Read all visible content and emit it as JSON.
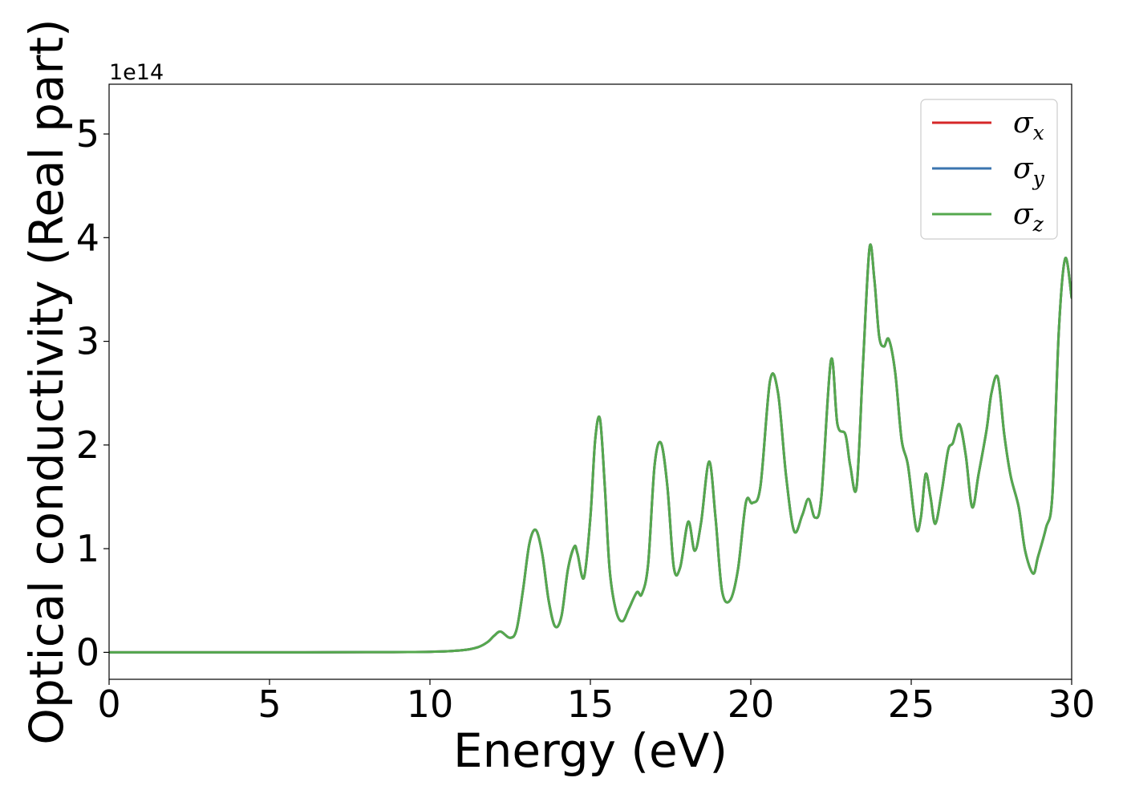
{
  "chart_data": {
    "type": "line",
    "title": "",
    "xlabel": "Energy (eV)",
    "ylabel": "Optical conductivity (Real part)",
    "y_offset_label": "1e14",
    "xlim": [
      0,
      30
    ],
    "ylim": [
      -0.26,
      5.48
    ],
    "y_scale_factor": 100000000000000.0,
    "xticks": [
      0,
      5,
      10,
      15,
      20,
      25,
      30
    ],
    "yticks": [
      0,
      1,
      2,
      3,
      4,
      5
    ],
    "grid": false,
    "legend_position": "top-right",
    "colors": {
      "x": "#d62728",
      "y": "#3b75af",
      "z": "#55a84e"
    },
    "x": [
      0,
      2,
      4,
      6,
      8,
      10,
      11,
      11.5,
      11.8,
      12.0,
      12.2,
      12.5,
      12.7,
      12.9,
      13.1,
      13.3,
      13.5,
      13.7,
      13.9,
      14.1,
      14.3,
      14.5,
      14.6,
      14.8,
      15.0,
      15.15,
      15.3,
      15.45,
      15.6,
      15.8,
      16.0,
      16.2,
      16.45,
      16.6,
      16.8,
      17.0,
      17.2,
      17.4,
      17.6,
      17.8,
      18.05,
      18.25,
      18.45,
      18.7,
      18.9,
      19.1,
      19.35,
      19.6,
      19.85,
      20.05,
      20.3,
      20.6,
      20.85,
      21.1,
      21.35,
      21.6,
      21.8,
      22.0,
      22.2,
      22.5,
      22.7,
      22.95,
      23.1,
      23.3,
      23.5,
      23.7,
      23.85,
      24.0,
      24.15,
      24.3,
      24.5,
      24.7,
      24.9,
      25.15,
      25.3,
      25.45,
      25.6,
      25.75,
      25.95,
      26.15,
      26.3,
      26.5,
      26.7,
      26.9,
      27.1,
      27.35,
      27.5,
      27.7,
      27.9,
      28.1,
      28.35,
      28.55,
      28.8,
      28.95,
      29.2,
      29.4,
      29.6,
      29.8,
      30
    ],
    "series": [
      {
        "name": "σx",
        "symbol": "σ",
        "subscript": "x",
        "color_key": "x",
        "values": [
          0,
          0,
          0,
          0,
          0.002,
          0.005,
          0.02,
          0.05,
          0.1,
          0.16,
          0.2,
          0.14,
          0.22,
          0.6,
          1.05,
          1.18,
          0.95,
          0.5,
          0.25,
          0.35,
          0.8,
          1.02,
          0.95,
          0.72,
          1.3,
          2.05,
          2.25,
          1.6,
          0.8,
          0.4,
          0.3,
          0.42,
          0.58,
          0.56,
          0.85,
          1.8,
          2.02,
          1.6,
          0.82,
          0.82,
          1.26,
          0.98,
          1.25,
          1.84,
          1.3,
          0.6,
          0.5,
          0.8,
          1.45,
          1.44,
          1.6,
          2.62,
          2.5,
          1.7,
          1.17,
          1.32,
          1.48,
          1.3,
          1.5,
          2.82,
          2.2,
          2.1,
          1.8,
          1.6,
          2.8,
          3.9,
          3.6,
          3.05,
          2.95,
          3.02,
          2.7,
          2.05,
          1.8,
          1.2,
          1.3,
          1.72,
          1.5,
          1.24,
          1.55,
          1.95,
          2.02,
          2.2,
          1.9,
          1.4,
          1.72,
          2.15,
          2.5,
          2.65,
          2.1,
          1.7,
          1.4,
          0.98,
          0.76,
          0.92,
          1.2,
          1.52,
          3.1,
          3.8,
          3.42
        ]
      },
      {
        "name": "σy",
        "symbol": "σ",
        "subscript": "y",
        "color_key": "y",
        "values": [
          0,
          0,
          0,
          0,
          0.002,
          0.005,
          0.02,
          0.05,
          0.1,
          0.16,
          0.2,
          0.14,
          0.22,
          0.6,
          1.05,
          1.18,
          0.95,
          0.5,
          0.25,
          0.35,
          0.8,
          1.02,
          0.95,
          0.72,
          1.3,
          2.05,
          2.25,
          1.6,
          0.8,
          0.4,
          0.3,
          0.42,
          0.58,
          0.56,
          0.85,
          1.8,
          2.02,
          1.6,
          0.82,
          0.82,
          1.26,
          0.98,
          1.25,
          1.84,
          1.3,
          0.6,
          0.5,
          0.8,
          1.45,
          1.44,
          1.6,
          2.62,
          2.5,
          1.7,
          1.17,
          1.32,
          1.48,
          1.3,
          1.5,
          2.82,
          2.2,
          2.1,
          1.8,
          1.6,
          2.8,
          3.9,
          3.6,
          3.05,
          2.95,
          3.02,
          2.7,
          2.05,
          1.8,
          1.2,
          1.3,
          1.72,
          1.5,
          1.24,
          1.55,
          1.95,
          2.02,
          2.2,
          1.9,
          1.4,
          1.72,
          2.15,
          2.5,
          2.65,
          2.1,
          1.7,
          1.4,
          0.98,
          0.76,
          0.92,
          1.2,
          1.52,
          3.1,
          3.8,
          3.42
        ]
      },
      {
        "name": "σz",
        "symbol": "σ",
        "subscript": "z",
        "color_key": "z",
        "values": [
          0,
          0,
          0,
          0,
          0.002,
          0.005,
          0.02,
          0.05,
          0.1,
          0.16,
          0.2,
          0.14,
          0.22,
          0.6,
          1.05,
          1.18,
          0.95,
          0.5,
          0.25,
          0.35,
          0.8,
          1.02,
          0.95,
          0.72,
          1.3,
          2.05,
          2.25,
          1.6,
          0.8,
          0.4,
          0.3,
          0.42,
          0.58,
          0.56,
          0.85,
          1.8,
          2.02,
          1.6,
          0.82,
          0.82,
          1.26,
          0.98,
          1.25,
          1.84,
          1.3,
          0.6,
          0.5,
          0.8,
          1.45,
          1.44,
          1.6,
          2.62,
          2.5,
          1.7,
          1.17,
          1.32,
          1.48,
          1.3,
          1.5,
          2.82,
          2.2,
          2.1,
          1.8,
          1.6,
          2.8,
          3.9,
          3.6,
          3.05,
          2.95,
          3.02,
          2.7,
          2.05,
          1.8,
          1.2,
          1.3,
          1.72,
          1.5,
          1.24,
          1.55,
          1.95,
          2.02,
          2.2,
          1.9,
          1.4,
          1.72,
          2.15,
          2.5,
          2.65,
          2.1,
          1.7,
          1.4,
          0.98,
          0.76,
          0.92,
          1.2,
          1.52,
          3.1,
          3.8,
          3.42
        ]
      }
    ]
  }
}
